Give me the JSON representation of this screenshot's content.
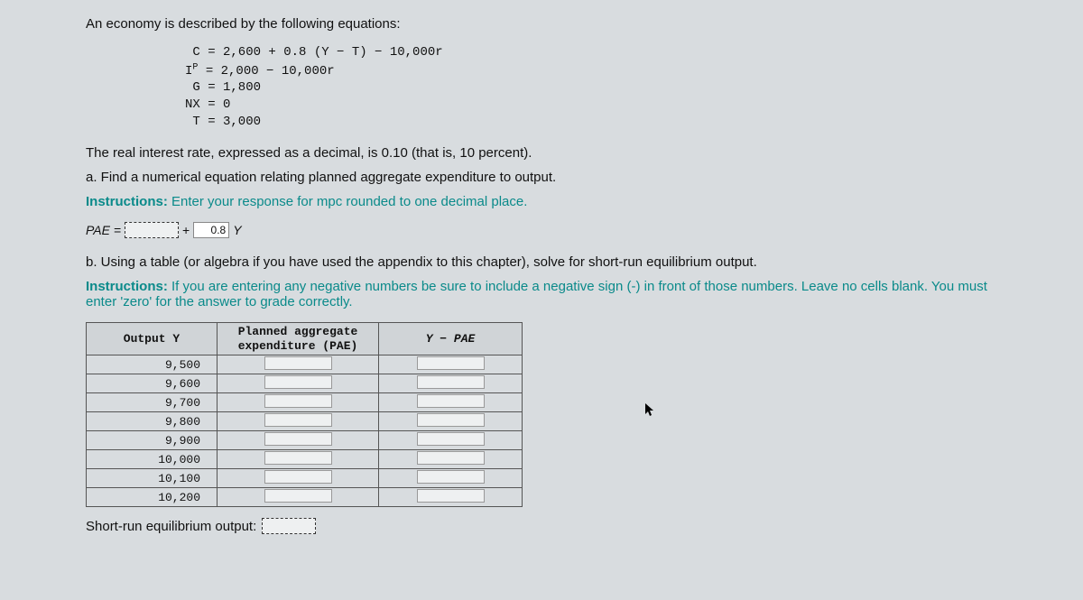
{
  "intro": "An economy is described by the following equations:",
  "equations": [
    " C = 2,600 + 0.8 (Y − T) − 10,000r",
    "IP = 2,000 − 10,000r",
    " G = 1,800",
    "NX = 0",
    " T = 3,000"
  ],
  "line_rate": "The real interest rate, expressed as a decimal, is 0.10 (that is, 10 percent).",
  "part_a": "a. Find a numerical equation relating planned aggregate expenditure to output.",
  "instr_a_label": "Instructions:",
  "instr_a_text": " Enter your response for mpc rounded to one decimal place.",
  "pae": {
    "label": "PAE =",
    "plus": "+",
    "mpc_value": "0.8",
    "var": "Y"
  },
  "part_b": "b. Using a table (or algebra if you have used the appendix to this chapter), solve for short-run equilibrium output.",
  "instr_b_label": "Instructions:",
  "instr_b_text": " If you are entering any negative numbers be sure to include a negative sign (-) in front of those numbers. Leave no cells blank. You must enter 'zero' for the answer to grade correctly.",
  "table": {
    "headers": {
      "col1": "Output Y",
      "col2_l1": "Planned aggregate",
      "col2_l2": "expenditure (PAE)",
      "col3": "Y − PAE"
    },
    "outputs": [
      "9,500",
      "9,600",
      "9,700",
      "9,800",
      "9,900",
      "10,000",
      "10,100",
      "10,200"
    ]
  },
  "short_label": "Short-run equilibrium output:"
}
